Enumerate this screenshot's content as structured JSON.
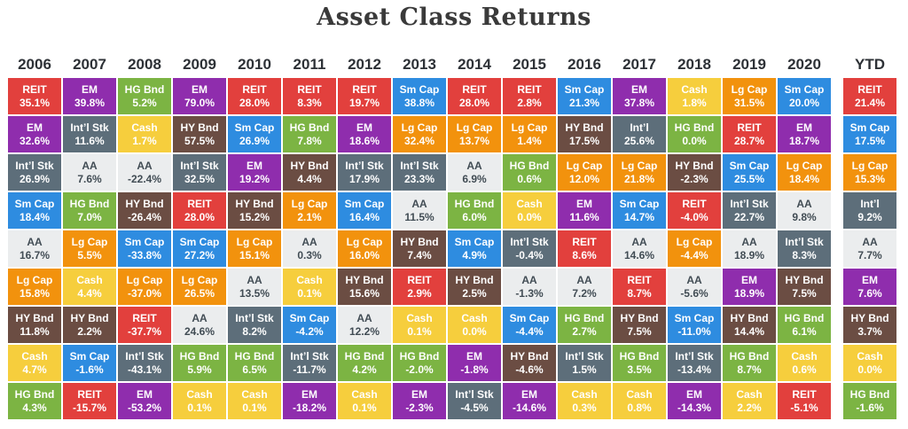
{
  "chart_data": {
    "type": "table",
    "title": "Asset Class Returns",
    "legend_position": "none",
    "asset_colors": {
      "REIT": "#e2403d",
      "EM": "#8f2dad",
      "HG Bnd": "#7cb443",
      "HY Bnd": "#6b4d43",
      "Int’l Stk": "#5d6e7a",
      "Int’l": "#5d6e7a",
      "Sm Cap": "#2e8ce0",
      "Lg Cap": "#f2920d",
      "Cash": "#f6ce3d",
      "AA": "#ebedee"
    },
    "dark_text_assets": [
      "AA"
    ],
    "columns": [
      {
        "year": "2006",
        "ranking": [
          [
            "REIT",
            35.1
          ],
          [
            "EM",
            32.6
          ],
          [
            "Int’l Stk",
            26.9
          ],
          [
            "Sm Cap",
            18.4
          ],
          [
            "AA",
            16.7
          ],
          [
            "Lg Cap",
            15.8
          ],
          [
            "HY Bnd",
            11.8
          ],
          [
            "Cash",
            4.7
          ],
          [
            "HG Bnd",
            4.3
          ]
        ]
      },
      {
        "year": "2007",
        "ranking": [
          [
            "EM",
            39.8
          ],
          [
            "Int’l Stk",
            11.6
          ],
          [
            "AA",
            7.6
          ],
          [
            "HG Bnd",
            7.0
          ],
          [
            "Lg Cap",
            5.5
          ],
          [
            "Cash",
            4.4
          ],
          [
            "HY Bnd",
            2.2
          ],
          [
            "Sm Cap",
            -1.6
          ],
          [
            "REIT",
            -15.7
          ]
        ]
      },
      {
        "year": "2008",
        "ranking": [
          [
            "HG Bnd",
            5.2
          ],
          [
            "Cash",
            1.7
          ],
          [
            "AA",
            -22.4
          ],
          [
            "HY Bnd",
            -26.4
          ],
          [
            "Sm Cap",
            -33.8
          ],
          [
            "Lg Cap",
            -37.0
          ],
          [
            "REIT",
            -37.7
          ],
          [
            "Int’l Stk",
            -43.1
          ],
          [
            "EM",
            -53.2
          ]
        ]
      },
      {
        "year": "2009",
        "ranking": [
          [
            "EM",
            79.0
          ],
          [
            "HY Bnd",
            57.5
          ],
          [
            "Int’l Stk",
            32.5
          ],
          [
            "REIT",
            28.0
          ],
          [
            "Sm Cap",
            27.2
          ],
          [
            "Lg Cap",
            26.5
          ],
          [
            "AA",
            24.6
          ],
          [
            "HG Bnd",
            5.9
          ],
          [
            "Cash",
            0.1
          ]
        ]
      },
      {
        "year": "2010",
        "ranking": [
          [
            "REIT",
            28.0
          ],
          [
            "Sm Cap",
            26.9
          ],
          [
            "EM",
            19.2
          ],
          [
            "HY Bnd",
            15.2
          ],
          [
            "Lg Cap",
            15.1
          ],
          [
            "AA",
            13.5
          ],
          [
            "Int’l Stk",
            8.2
          ],
          [
            "HG Bnd",
            6.5
          ],
          [
            "Cash",
            0.1
          ]
        ]
      },
      {
        "year": "2011",
        "ranking": [
          [
            "REIT",
            8.3
          ],
          [
            "HG Bnd",
            7.8
          ],
          [
            "HY Bnd",
            4.4
          ],
          [
            "Lg Cap",
            2.1
          ],
          [
            "AA",
            0.3
          ],
          [
            "Cash",
            0.1
          ],
          [
            "Sm Cap",
            -4.2
          ],
          [
            "Int’l Stk",
            -11.7
          ],
          [
            "EM",
            -18.2
          ]
        ]
      },
      {
        "year": "2012",
        "ranking": [
          [
            "REIT",
            19.7
          ],
          [
            "EM",
            18.6
          ],
          [
            "Int’l Stk",
            17.9
          ],
          [
            "Sm Cap",
            16.4
          ],
          [
            "Lg Cap",
            16.0
          ],
          [
            "HY Bnd",
            15.6
          ],
          [
            "AA",
            12.2
          ],
          [
            "HG Bnd",
            4.2
          ],
          [
            "Cash",
            0.1
          ]
        ]
      },
      {
        "year": "2013",
        "ranking": [
          [
            "Sm Cap",
            38.8
          ],
          [
            "Lg Cap",
            32.4
          ],
          [
            "Int’l Stk",
            23.3
          ],
          [
            "AA",
            11.5
          ],
          [
            "HY Bnd",
            7.4
          ],
          [
            "REIT",
            2.9
          ],
          [
            "Cash",
            0.1
          ],
          [
            "HG Bnd",
            -2.0
          ],
          [
            "EM",
            -2.3
          ]
        ]
      },
      {
        "year": "2014",
        "ranking": [
          [
            "REIT",
            28.0
          ],
          [
            "Lg Cap",
            13.7
          ],
          [
            "AA",
            6.9
          ],
          [
            "HG Bnd",
            6.0
          ],
          [
            "Sm Cap",
            4.9
          ],
          [
            "HY Bnd",
            2.5
          ],
          [
            "Cash",
            0.0
          ],
          [
            "EM",
            -1.8
          ],
          [
            "Int’l Stk",
            -4.5
          ]
        ]
      },
      {
        "year": "2015",
        "ranking": [
          [
            "REIT",
            2.8
          ],
          [
            "Lg Cap",
            1.4
          ],
          [
            "HG Bnd",
            0.6
          ],
          [
            "Cash",
            0.0
          ],
          [
            "Int’l Stk",
            -0.4
          ],
          [
            "AA",
            -1.3
          ],
          [
            "Sm Cap",
            -4.4
          ],
          [
            "HY Bnd",
            -4.6
          ],
          [
            "EM",
            -14.6
          ]
        ]
      },
      {
        "year": "2016",
        "ranking": [
          [
            "Sm Cap",
            21.3
          ],
          [
            "HY Bnd",
            17.5
          ],
          [
            "Lg Cap",
            12.0
          ],
          [
            "EM",
            11.6
          ],
          [
            "REIT",
            8.6
          ],
          [
            "AA",
            7.2
          ],
          [
            "HG Bnd",
            2.7
          ],
          [
            "Int’l Stk",
            1.5
          ],
          [
            "Cash",
            0.3
          ]
        ]
      },
      {
        "year": "2017",
        "ranking": [
          [
            "EM",
            37.8
          ],
          [
            "Int’l",
            25.6
          ],
          [
            "Lg Cap",
            21.8
          ],
          [
            "Sm Cap",
            14.7
          ],
          [
            "AA",
            14.6
          ],
          [
            "REIT",
            8.7
          ],
          [
            "HY Bnd",
            7.5
          ],
          [
            "HG Bnd",
            3.5
          ],
          [
            "Cash",
            0.8
          ]
        ]
      },
      {
        "year": "2018",
        "ranking": [
          [
            "Cash",
            1.8
          ],
          [
            "HG Bnd",
            0.0
          ],
          [
            "HY Bnd",
            -2.3
          ],
          [
            "REIT",
            -4.0
          ],
          [
            "Lg Cap",
            -4.4
          ],
          [
            "AA",
            -5.6
          ],
          [
            "Sm Cap",
            -11.0
          ],
          [
            "Int’l Stk",
            -13.4
          ],
          [
            "EM",
            -14.3
          ]
        ]
      },
      {
        "year": "2019",
        "ranking": [
          [
            "Lg Cap",
            31.5
          ],
          [
            "REIT",
            28.7
          ],
          [
            "Sm Cap",
            25.5
          ],
          [
            "Int’l Stk",
            22.7
          ],
          [
            "AA",
            18.9
          ],
          [
            "EM",
            18.9
          ],
          [
            "HY Bnd",
            14.4
          ],
          [
            "HG Bnd",
            8.7
          ],
          [
            "Cash",
            2.2
          ]
        ]
      },
      {
        "year": "2020",
        "ranking": [
          [
            "Sm Cap",
            20.0
          ],
          [
            "EM",
            18.7
          ],
          [
            "Lg Cap",
            18.4
          ],
          [
            "AA",
            9.8
          ],
          [
            "Int’l Stk",
            8.3
          ],
          [
            "HY Bnd",
            7.5
          ],
          [
            "HG Bnd",
            6.1
          ],
          [
            "Cash",
            0.6
          ],
          [
            "REIT",
            -5.1
          ]
        ]
      },
      {
        "year": "YTD",
        "ranking": [
          [
            "REIT",
            21.4
          ],
          [
            "Sm Cap",
            17.5
          ],
          [
            "Lg Cap",
            15.3
          ],
          [
            "Int’l",
            9.2
          ],
          [
            "AA",
            7.7
          ],
          [
            "EM",
            7.6
          ],
          [
            "HY Bnd",
            3.7
          ],
          [
            "Cash",
            0.0
          ],
          [
            "HG Bnd",
            -1.6
          ]
        ]
      }
    ]
  }
}
